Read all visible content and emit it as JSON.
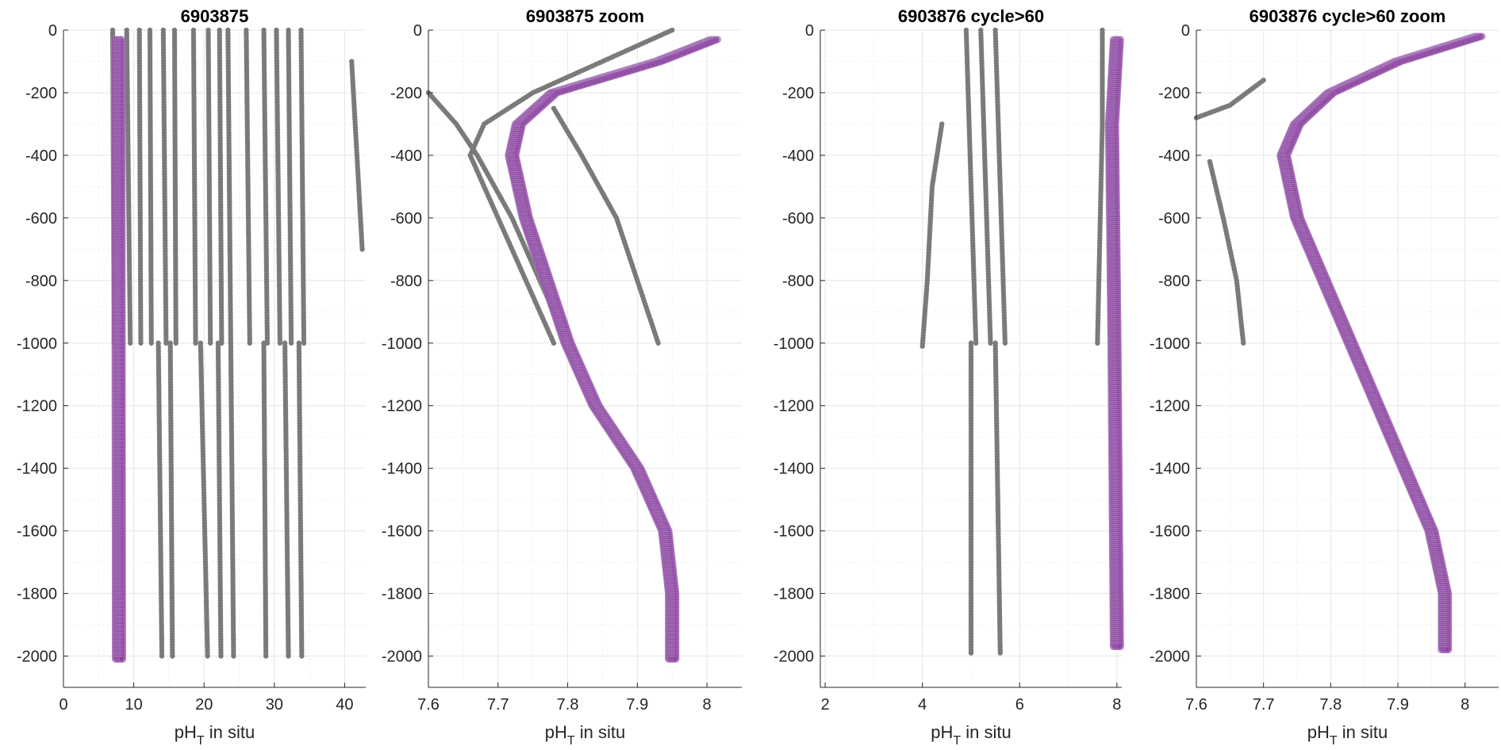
{
  "chart_data": [
    {
      "type": "scatter",
      "title": "6903875",
      "xlabel": "pH_T in situ",
      "ylabel": "",
      "xlim": [
        0,
        43
      ],
      "ylim": [
        -2100,
        0
      ],
      "xticks": [
        0,
        10,
        20,
        30,
        40
      ],
      "yticks": [
        0,
        -200,
        -400,
        -600,
        -800,
        -1000,
        -1200,
        -1400,
        -1600,
        -1800,
        -2000
      ],
      "grid": true,
      "series": [
        {
          "color": "#7a7a7a",
          "profiles": [
            {
              "depth": [
                0,
                -1000
              ],
              "x": [
                7.0,
                7.2
              ]
            },
            {
              "depth": [
                0,
                -1000
              ],
              "x": [
                9.0,
                9.5
              ]
            },
            {
              "depth": [
                0,
                -1000
              ],
              "x": [
                10.8,
                11.0
              ]
            },
            {
              "depth": [
                0,
                -1000
              ],
              "x": [
                12.3,
                12.5
              ]
            },
            {
              "depth": [
                0,
                -1000
              ],
              "x": [
                14.2,
                14.6
              ]
            },
            {
              "depth": [
                0,
                -1000
              ],
              "x": [
                15.8,
                16.0
              ]
            },
            {
              "depth": [
                0,
                -1000
              ],
              "x": [
                18.5,
                18.8
              ]
            },
            {
              "depth": [
                0,
                -1000
              ],
              "x": [
                20.6,
                20.9
              ]
            },
            {
              "depth": [
                0,
                -1000
              ],
              "x": [
                22.2,
                22.5
              ]
            },
            {
              "depth": [
                0,
                -1000
              ],
              "x": [
                23.4,
                23.8
              ]
            },
            {
              "depth": [
                0,
                -1000
              ],
              "x": [
                26.0,
                26.5
              ]
            },
            {
              "depth": [
                0,
                -1000
              ],
              "x": [
                28.5,
                29.0
              ]
            },
            {
              "depth": [
                0,
                -1000
              ],
              "x": [
                30.3,
                30.8
              ]
            },
            {
              "depth": [
                0,
                -1000
              ],
              "x": [
                32.0,
                32.4
              ]
            },
            {
              "depth": [
                0,
                -1000
              ],
              "x": [
                33.8,
                34.2
              ]
            },
            {
              "depth": [
                -100,
                -700
              ],
              "x": [
                41.0,
                42.5
              ]
            },
            {
              "depth": [
                -1000,
                -2000
              ],
              "x": [
                13.5,
                14.0
              ]
            },
            {
              "depth": [
                -1000,
                -2000
              ],
              "x": [
                15.2,
                15.5
              ]
            },
            {
              "depth": [
                -1000,
                -2000
              ],
              "x": [
                19.5,
                20.5
              ]
            },
            {
              "depth": [
                -1000,
                -2000
              ],
              "x": [
                22.0,
                22.4
              ]
            },
            {
              "depth": [
                -1000,
                -2000
              ],
              "x": [
                23.8,
                24.2
              ]
            },
            {
              "depth": [
                -1000,
                -2000
              ],
              "x": [
                28.5,
                28.8
              ]
            },
            {
              "depth": [
                -1000,
                -2000
              ],
              "x": [
                31.5,
                32.0
              ]
            },
            {
              "depth": [
                -1000,
                -2000
              ],
              "x": [
                33.5,
                33.9
              ]
            }
          ]
        },
        {
          "color": "#8a3f9e",
          "profiles": [
            {
              "depth": [
                -30,
                -2010
              ],
              "x": [
                7.8,
                7.9
              ]
            }
          ]
        }
      ]
    },
    {
      "type": "scatter",
      "title": "6903875 zoom",
      "xlabel": "pH_T in situ",
      "ylabel": "",
      "xlim": [
        7.6,
        8.05
      ],
      "ylim": [
        -2100,
        0
      ],
      "xticks": [
        7.6,
        7.7,
        7.8,
        7.9,
        8
      ],
      "yticks": [
        0,
        -200,
        -400,
        -600,
        -800,
        -1000,
        -1200,
        -1400,
        -1600,
        -1800,
        -2000
      ],
      "grid": true,
      "series": [
        {
          "color": "#7a7a7a",
          "profiles": [
            {
              "depth": [
                0,
                -100,
                -200,
                -300,
                -400,
                -600,
                -800,
                -1000
              ],
              "x": [
                7.95,
                7.85,
                7.75,
                7.68,
                7.66,
                7.7,
                7.74,
                7.78
              ]
            },
            {
              "depth": [
                -200,
                -300,
                -400,
                -600,
                -800,
                -1000
              ],
              "x": [
                7.6,
                7.64,
                7.67,
                7.72,
                7.76,
                7.8
              ]
            },
            {
              "depth": [
                -250,
                -400,
                -600,
                -800,
                -1000
              ],
              "x": [
                7.78,
                7.82,
                7.87,
                7.9,
                7.93
              ]
            }
          ]
        },
        {
          "color": "#8a3f9e",
          "profiles": [
            {
              "depth": [
                -30,
                -100,
                -200,
                -300,
                -400,
                -600,
                -800,
                -1000,
                -1200,
                -1400,
                -1600,
                -1800,
                -2010
              ],
              "x": [
                8.01,
                7.93,
                7.78,
                7.73,
                7.72,
                7.74,
                7.77,
                7.8,
                7.84,
                7.9,
                7.94,
                7.95,
                7.95
              ]
            }
          ]
        }
      ]
    },
    {
      "type": "scatter",
      "title": "6903876 cycle>60",
      "xlabel": "pH_T in situ",
      "ylabel": "",
      "xlim": [
        1.9,
        8.1
      ],
      "ylim": [
        -2100,
        0
      ],
      "xticks": [
        2,
        4,
        6,
        8
      ],
      "yticks": [
        0,
        -200,
        -400,
        -600,
        -800,
        -1000,
        -1200,
        -1400,
        -1600,
        -1800,
        -2000
      ],
      "grid": true,
      "series": [
        {
          "color": "#7a7a7a",
          "profiles": [
            {
              "depth": [
                0,
                -1000
              ],
              "x": [
                4.9,
                5.1
              ]
            },
            {
              "depth": [
                0,
                -1000
              ],
              "x": [
                5.2,
                5.4
              ]
            },
            {
              "depth": [
                0,
                -1000
              ],
              "x": [
                5.5,
                5.7
              ]
            },
            {
              "depth": [
                -300,
                -500,
                -800,
                -1010
              ],
              "x": [
                4.4,
                4.2,
                4.1,
                4.0
              ]
            },
            {
              "depth": [
                0,
                -300,
                -1000
              ],
              "x": [
                7.7,
                7.7,
                7.6
              ]
            },
            {
              "depth": [
                -1000,
                -1990
              ],
              "x": [
                5.0,
                5.0
              ]
            },
            {
              "depth": [
                -1000,
                -1990
              ],
              "x": [
                5.5,
                5.6
              ]
            }
          ]
        },
        {
          "color": "#8a3f9e",
          "profiles": [
            {
              "depth": [
                -30,
                -300,
                -1000,
                -1970
              ],
              "x": [
                8.0,
                7.9,
                7.95,
                8.0
              ]
            }
          ]
        }
      ]
    },
    {
      "type": "scatter",
      "title": "6903876 cycle>60 zoom",
      "xlabel": "pH_T in situ",
      "ylabel": "",
      "xlim": [
        7.6,
        8.05
      ],
      "ylim": [
        -2100,
        0
      ],
      "xticks": [
        7.6,
        7.7,
        7.8,
        7.9,
        8
      ],
      "yticks": [
        0,
        -200,
        -400,
        -600,
        -800,
        -1000,
        -1200,
        -1400,
        -1600,
        -1800,
        -2000
      ],
      "grid": true,
      "series": [
        {
          "color": "#7a7a7a",
          "profiles": [
            {
              "depth": [
                -160,
                -240,
                -280
              ],
              "x": [
                7.7,
                7.65,
                7.6
              ]
            },
            {
              "depth": [
                -420,
                -600,
                -800,
                -1000
              ],
              "x": [
                7.62,
                7.64,
                7.66,
                7.67
              ]
            }
          ]
        },
        {
          "color": "#8a3f9e",
          "profiles": [
            {
              "depth": [
                -20,
                -100,
                -200,
                -300,
                -400,
                -600,
                -800,
                -1000,
                -1200,
                -1400,
                -1600,
                -1800,
                -1980
              ],
              "x": [
                8.02,
                7.9,
                7.8,
                7.75,
                7.73,
                7.75,
                7.79,
                7.83,
                7.87,
                7.91,
                7.95,
                7.97,
                7.97
              ]
            }
          ]
        }
      ]
    }
  ]
}
